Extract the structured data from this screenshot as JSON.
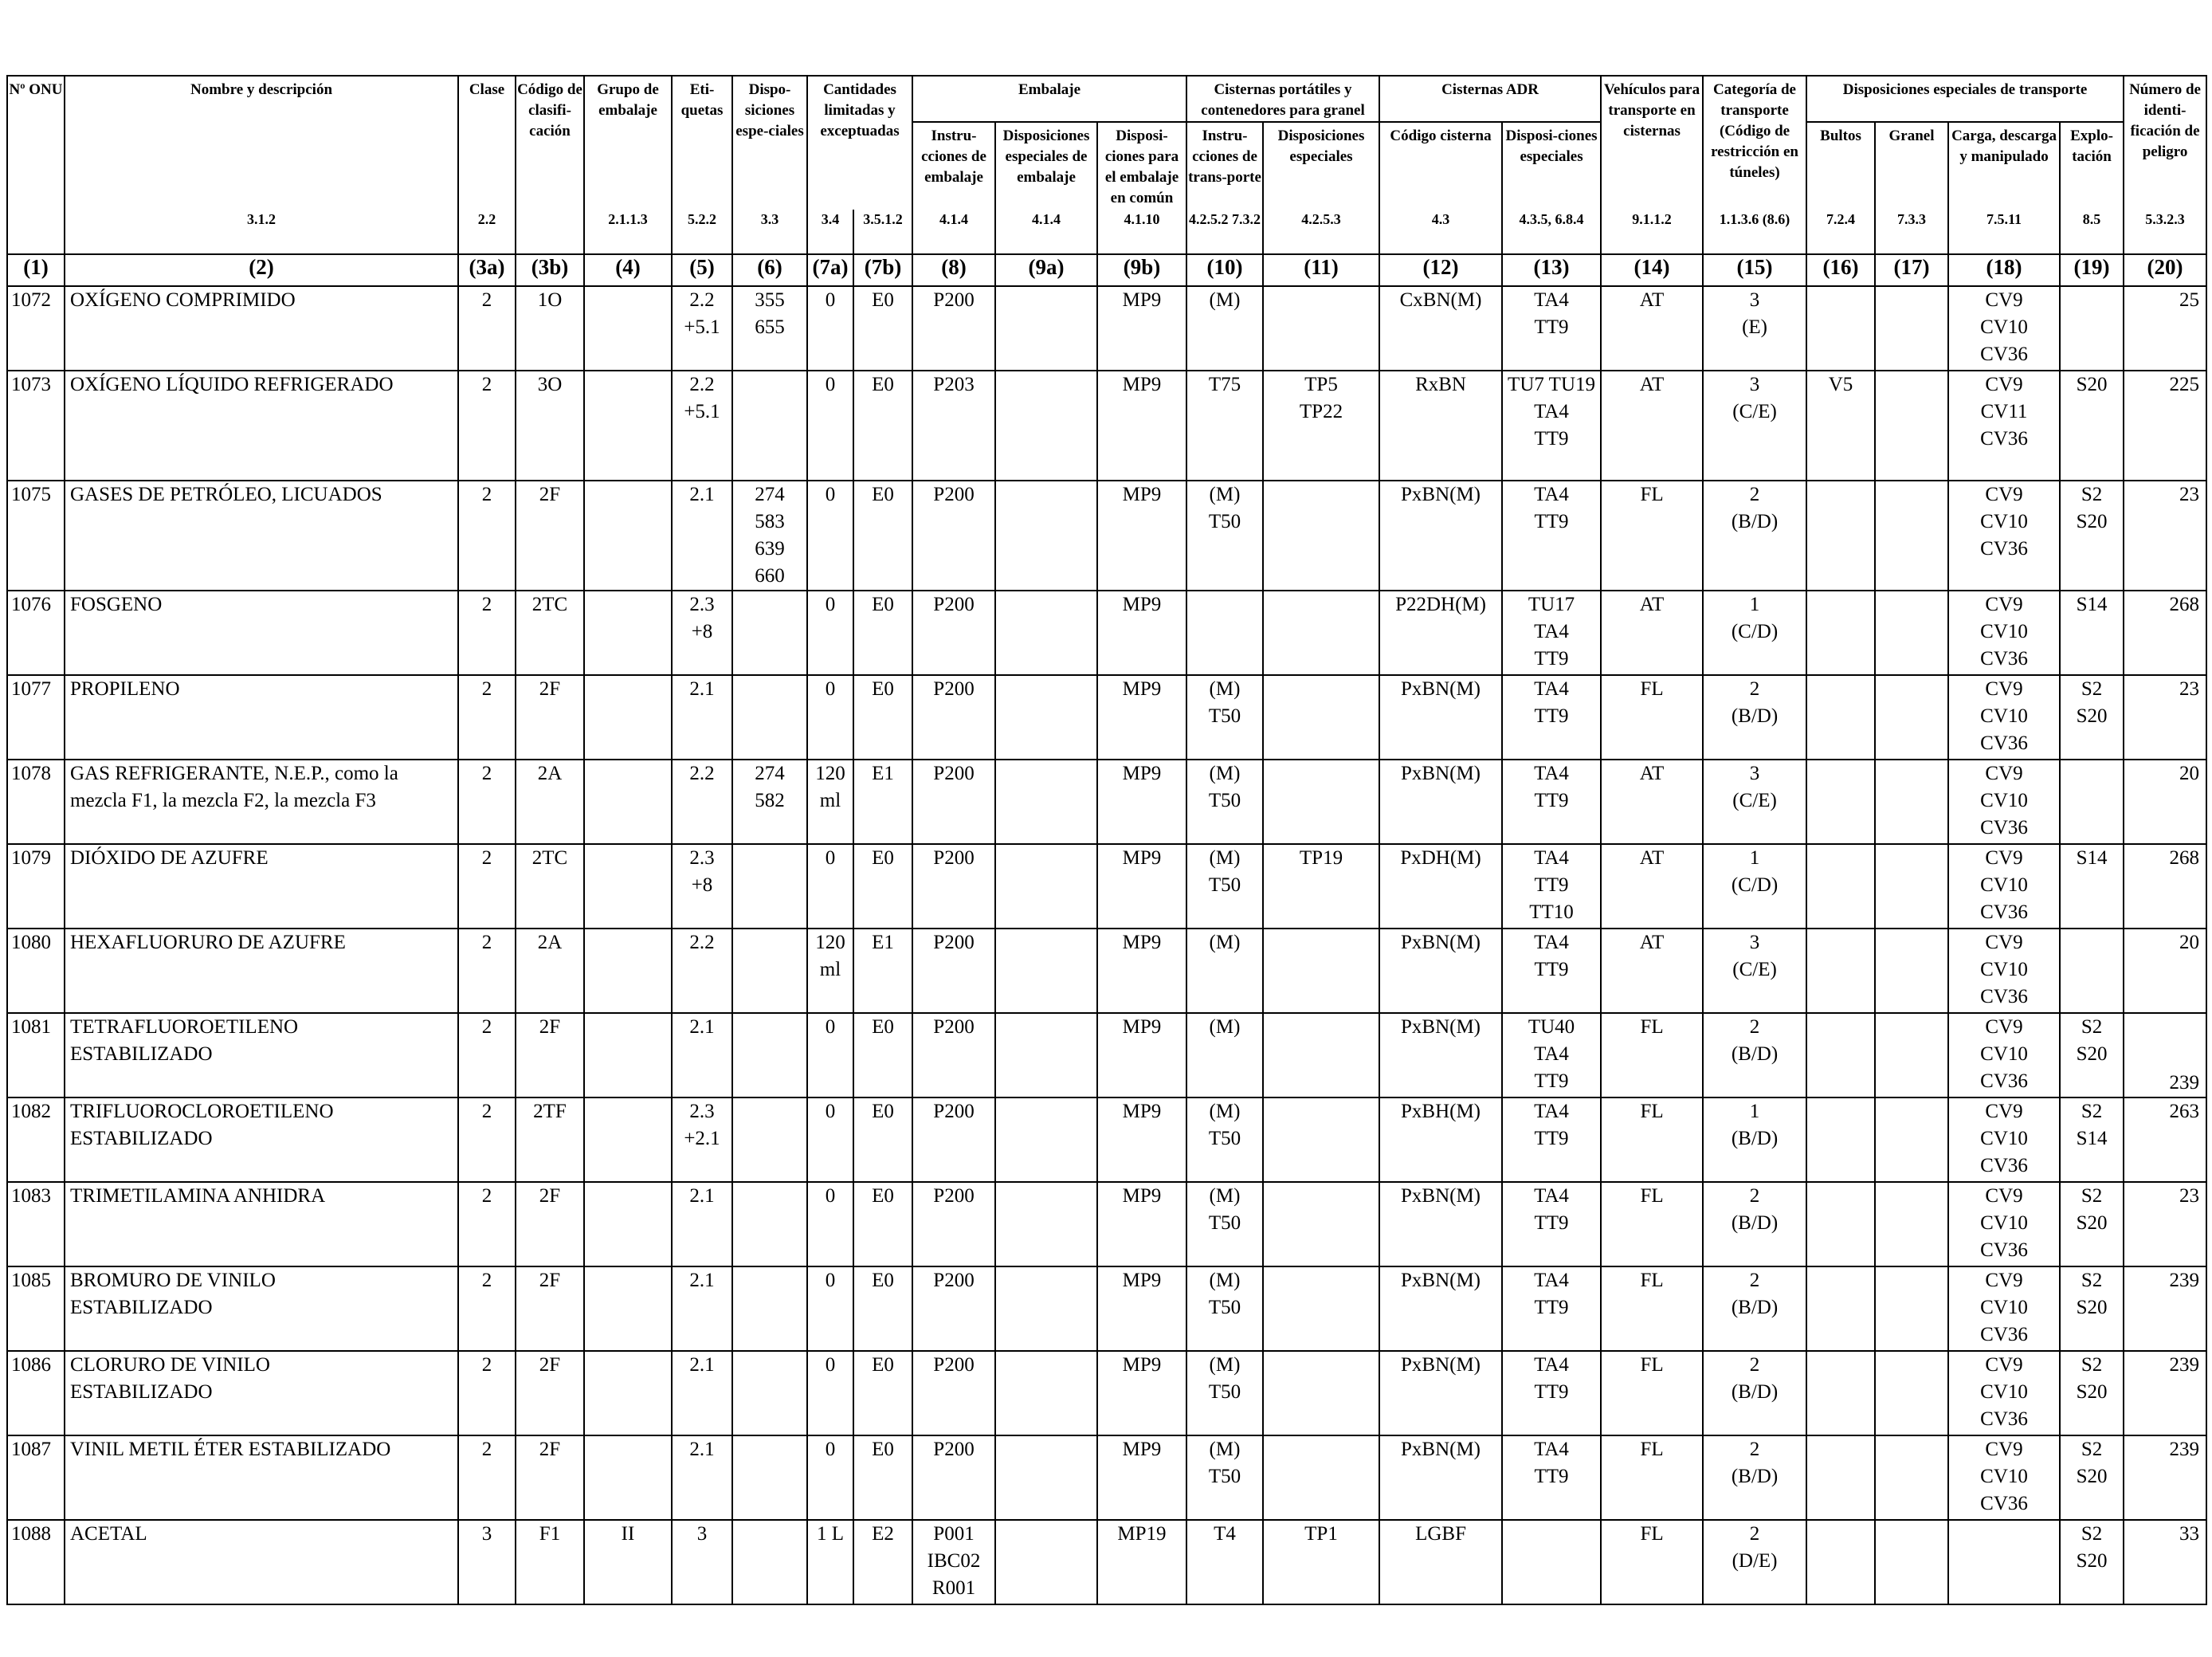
{
  "headers": {
    "h1": "Nº ONU",
    "h2": "Nombre y descripción",
    "h3a": "Clase",
    "h3b": "Código de clasifi-cación",
    "h4": "Grupo de embalaje",
    "h5": "Eti-quetas",
    "h6": "Dispo-siciones espe-ciales",
    "h7": "Cantidades limitadas y exceptuadas",
    "h8_group": "Embalaje",
    "h8": "Instru-cciones de embalaje",
    "h9a": "Disposiciones especiales de embalaje",
    "h9b": "Disposi-ciones para el embalaje en común",
    "h10_group": "Cisternas portátiles y contenedores para granel",
    "h10": "Instru-cciones de trans-porte",
    "h11": "Disposiciones especiales",
    "h12_group": "Cisternas ADR",
    "h12": "Código cisterna",
    "h13": "Disposi-ciones especiales",
    "h14": "Vehículos para transporte en cisternas",
    "h15": "Categoría de transporte (Código de restricción en túneles)",
    "h16_group": "Disposiciones especiales de transporte",
    "h16": "Bultos",
    "h17": "Granel",
    "h18": "Carga, descarga y manipulado",
    "h19": "Explo-tación",
    "h20": "Número de identi-ficación de peligro"
  },
  "refs": {
    "r1": "",
    "r2": "3.1.2",
    "r3a": "2.2",
    "r3b": "",
    "r4": "2.1.1.3",
    "r5": "5.2.2",
    "r6": "3.3",
    "r7a": "3.4",
    "r7b": "3.5.1.2",
    "r8": "4.1.4",
    "r9a": "4.1.4",
    "r9b": "4.1.10",
    "r10": "4.2.5.2 7.3.2",
    "r11": "4.2.5.3",
    "r12": "4.3",
    "r13": "4.3.5, 6.8.4",
    "r14": "9.1.1.2",
    "r15": "1.1.3.6 (8.6)",
    "r16": "7.2.4",
    "r17": "7.3.3",
    "r18": "7.5.11",
    "r19": "8.5",
    "r20": "5.3.2.3"
  },
  "colnums": [
    "(1)",
    "(2)",
    "(3a)",
    "(3b)",
    "(4)",
    "(5)",
    "(6)",
    "(7a)",
    "(7b)",
    "(8)",
    "(9a)",
    "(9b)",
    "(10)",
    "(11)",
    "(12)",
    "(13)",
    "(14)",
    "(15)",
    "(16)",
    "(17)",
    "(18)",
    "(19)",
    "(20)"
  ],
  "rows": [
    [
      "1072",
      "OXÍGENO COMPRIMIDO",
      "2",
      "1O",
      "",
      "2.2\n+5.1",
      "355\n655",
      "0",
      "E0",
      "P200",
      "",
      "MP9",
      "(M)",
      "",
      "CxBN(M)",
      "TA4\nTT9",
      "AT",
      "3\n(E)",
      "",
      "",
      "CV9\nCV10\nCV36",
      "",
      "25"
    ],
    [
      "1073",
      "OXÍGENO LÍQUIDO REFRIGERADO",
      "2",
      "3O",
      "",
      "2.2\n+5.1",
      "",
      "0",
      "E0",
      "P203",
      "",
      "MP9",
      "T75",
      "TP5\nTP22",
      "RxBN",
      "TU7 TU19\nTA4\nTT9",
      "AT",
      "3\n(C/E)",
      "V5",
      "",
      "CV9\nCV11\nCV36",
      "S20",
      "225"
    ],
    [
      "1075",
      "GASES DE PETRÓLEO, LICUADOS",
      "2",
      "2F",
      "",
      "2.1",
      "274\n583\n639\n660",
      "0",
      "E0",
      "P200",
      "",
      "MP9",
      "(M)\nT50",
      "",
      "PxBN(M)",
      "TA4\nTT9",
      "FL",
      "2\n(B/D)",
      "",
      "",
      "CV9\nCV10\nCV36",
      "S2\nS20",
      "23"
    ],
    [
      "1076",
      "FOSGENO",
      "2",
      "2TC",
      "",
      "2.3\n+8",
      "",
      "0",
      "E0",
      "P200",
      "",
      "MP9",
      "",
      "",
      "P22DH(M)",
      "TU17\nTA4\nTT9",
      "AT",
      "1\n(C/D)",
      "",
      "",
      "CV9\nCV10\nCV36",
      "S14",
      "268"
    ],
    [
      "1077",
      "PROPILENO",
      "2",
      "2F",
      "",
      "2.1",
      "",
      "0",
      "E0",
      "P200",
      "",
      "MP9",
      "(M)\nT50",
      "",
      "PxBN(M)",
      "TA4\nTT9",
      "FL",
      "2\n(B/D)",
      "",
      "",
      "CV9\nCV10\nCV36",
      "S2\nS20",
      "23"
    ],
    [
      "1078",
      "GAS REFRIGERANTE, N.E.P., como la\nmezcla F1, la mezcla F2, la mezcla F3",
      "2",
      "2A",
      "",
      "2.2",
      "274\n582",
      "120\nml",
      "E1",
      "P200",
      "",
      "MP9",
      "(M)\nT50",
      "",
      "PxBN(M)",
      "TA4\nTT9",
      "AT",
      "3\n(C/E)",
      "",
      "",
      "CV9\nCV10\nCV36",
      "",
      "20"
    ],
    [
      "1079",
      "DIÓXIDO DE AZUFRE",
      "2",
      "2TC",
      "",
      "2.3\n+8",
      "",
      "0",
      "E0",
      "P200",
      "",
      "MP9",
      "(M)\nT50",
      "TP19",
      "PxDH(M)",
      "TA4\nTT9\nTT10",
      "AT",
      "1\n(C/D)",
      "",
      "",
      "CV9\nCV10\nCV36",
      "S14",
      "268"
    ],
    [
      "1080",
      "HEXAFLUORURO DE AZUFRE",
      "2",
      "2A",
      "",
      "2.2",
      "",
      "120\nml",
      "E1",
      "P200",
      "",
      "MP9",
      "(M)",
      "",
      "PxBN(M)",
      "TA4\nTT9",
      "AT",
      "3\n(C/E)",
      "",
      "",
      "CV9\nCV10\nCV36",
      "",
      "20"
    ],
    [
      "1081",
      "TETRAFLUOROETILENO\nESTABILIZADO",
      "2",
      "2F",
      "",
      "2.1",
      "",
      "0",
      "E0",
      "P200",
      "",
      "MP9",
      "(M)",
      "",
      "PxBN(M)",
      "TU40\nTA4\nTT9",
      "FL",
      "2\n(B/D)",
      "",
      "",
      "CV9\nCV10\nCV36",
      "S2\nS20",
      "239"
    ],
    [
      "1082",
      "TRIFLUOROCLOROETILENO\nESTABILIZADO",
      "2",
      "2TF",
      "",
      "2.3\n+2.1",
      "",
      "0",
      "E0",
      "P200",
      "",
      "MP9",
      "(M)\nT50",
      "",
      "PxBH(M)",
      "TA4\nTT9",
      "FL",
      "1\n(B/D)",
      "",
      "",
      "CV9\nCV10\nCV36",
      "S2\nS14",
      "263"
    ],
    [
      "1083",
      "TRIMETILAMINA ANHIDRA",
      "2",
      "2F",
      "",
      "2.1",
      "",
      "0",
      "E0",
      "P200",
      "",
      "MP9",
      "(M)\nT50",
      "",
      "PxBN(M)",
      "TA4\nTT9",
      "FL",
      "2\n(B/D)",
      "",
      "",
      "CV9\nCV10\nCV36",
      "S2\nS20",
      "23"
    ],
    [
      "1085",
      "BROMURO DE VINILO\nESTABILIZADO",
      "2",
      "2F",
      "",
      "2.1",
      "",
      "0",
      "E0",
      "P200",
      "",
      "MP9",
      "(M)\nT50",
      "",
      "PxBN(M)",
      "TA4\nTT9",
      "FL",
      "2\n(B/D)",
      "",
      "",
      "CV9\nCV10\nCV36",
      "S2\nS20",
      "239"
    ],
    [
      "1086",
      "CLORURO DE VINILO\nESTABILIZADO",
      "2",
      "2F",
      "",
      "2.1",
      "",
      "0",
      "E0",
      "P200",
      "",
      "MP9",
      "(M)\nT50",
      "",
      "PxBN(M)",
      "TA4\nTT9",
      "FL",
      "2\n(B/D)",
      "",
      "",
      "CV9\nCV10\nCV36",
      "S2\nS20",
      "239"
    ],
    [
      "1087",
      "VINIL METIL ÉTER ESTABILIZADO",
      "2",
      "2F",
      "",
      "2.1",
      "",
      "0",
      "E0",
      "P200",
      "",
      "MP9",
      "(M)\nT50",
      "",
      "PxBN(M)",
      "TA4\nTT9",
      "FL",
      "2\n(B/D)",
      "",
      "",
      "CV9\nCV10\nCV36",
      "S2\nS20",
      "239"
    ],
    [
      "1088",
      "ACETAL",
      "3",
      "F1",
      "II",
      "3",
      "",
      "1 L",
      "E2",
      "P001\nIBC02\nR001",
      "",
      "MP19",
      "T4",
      "TP1",
      "LGBF",
      "",
      "FL",
      "2\n(D/E)",
      "",
      "",
      "",
      "S2\nS20",
      "33"
    ]
  ]
}
